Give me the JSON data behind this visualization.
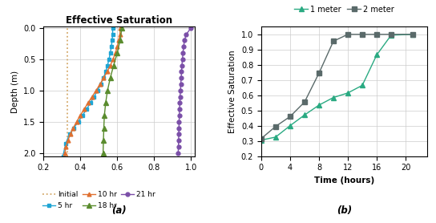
{
  "panel_a": {
    "title": "Effective Saturation",
    "ylabel": "Depth (m)",
    "xlim": [
      0.2,
      1.02
    ],
    "ylim": [
      2.05,
      -0.02
    ],
    "xticks": [
      0.2,
      0.4,
      0.6,
      0.8,
      1.0
    ],
    "yticks": [
      0,
      0.5,
      1.0,
      1.5,
      2.0
    ],
    "label": "(a)",
    "initial_x": 0.33,
    "initial_color": "#D4A96A",
    "series": [
      {
        "label": "5 hr",
        "color": "#1FA5D4",
        "marker": "s",
        "x": [
          0.575,
          0.575,
          0.572,
          0.568,
          0.562,
          0.555,
          0.547,
          0.537,
          0.525,
          0.51,
          0.493,
          0.474,
          0.454,
          0.433,
          0.411,
          0.388,
          0.364,
          0.34,
          0.32,
          0.305
        ],
        "y": [
          0.0,
          0.1,
          0.2,
          0.3,
          0.4,
          0.5,
          0.6,
          0.7,
          0.8,
          0.9,
          1.0,
          1.1,
          1.2,
          1.3,
          1.4,
          1.5,
          1.6,
          1.7,
          1.85,
          2.05
        ]
      },
      {
        "label": "10 hr",
        "color": "#E07030",
        "marker": "^",
        "x": [
          0.618,
          0.614,
          0.608,
          0.6,
          0.59,
          0.577,
          0.562,
          0.545,
          0.526,
          0.506,
          0.485,
          0.463,
          0.441,
          0.42,
          0.399,
          0.379,
          0.361,
          0.345,
          0.332,
          0.322,
          0.315
        ],
        "y": [
          0.0,
          0.1,
          0.2,
          0.3,
          0.4,
          0.5,
          0.6,
          0.7,
          0.8,
          0.9,
          1.0,
          1.1,
          1.2,
          1.3,
          1.4,
          1.5,
          1.6,
          1.7,
          1.8,
          1.9,
          2.0
        ]
      },
      {
        "label": "18 hr",
        "color": "#5A8C2E",
        "marker": "^",
        "x": [
          0.625,
          0.615,
          0.6,
          0.58,
          0.562,
          0.547,
          0.537,
          0.53,
          0.527,
          0.525,
          0.523
        ],
        "y": [
          0.0,
          0.2,
          0.4,
          0.6,
          0.8,
          1.0,
          1.2,
          1.4,
          1.6,
          1.8,
          2.0
        ]
      },
      {
        "label": "21 hr",
        "color": "#7B4FA8",
        "marker": "o",
        "x": [
          1.0,
          0.975,
          0.965,
          0.96,
          0.957,
          0.954,
          0.951,
          0.949,
          0.947,
          0.945,
          0.943,
          0.941,
          0.94,
          0.938,
          0.937,
          0.936,
          0.935,
          0.934,
          0.933,
          0.932,
          0.931
        ],
        "y": [
          0.0,
          0.1,
          0.2,
          0.3,
          0.4,
          0.5,
          0.6,
          0.7,
          0.8,
          0.9,
          1.0,
          1.1,
          1.2,
          1.3,
          1.4,
          1.5,
          1.6,
          1.7,
          1.8,
          1.9,
          2.0
        ]
      }
    ]
  },
  "panel_b": {
    "xlabel": "Time (hours)",
    "ylabel": "Effective Saturation",
    "xlim": [
      0,
      23
    ],
    "ylim": [
      0.2,
      1.05
    ],
    "xticks": [
      0,
      4,
      8,
      12,
      16,
      20
    ],
    "yticks": [
      0.2,
      0.3,
      0.4,
      0.5,
      0.6,
      0.7,
      0.8,
      0.9,
      1.0
    ],
    "label": "(b)",
    "series": [
      {
        "label": "1 meter",
        "color": "#2AAA82",
        "marker": "^",
        "x": [
          0,
          2,
          4,
          6,
          8,
          10,
          12,
          14,
          16,
          18,
          21
        ],
        "y": [
          0.305,
          0.325,
          0.4,
          0.47,
          0.535,
          0.585,
          0.615,
          0.665,
          0.865,
          0.995,
          1.0
        ]
      },
      {
        "label": "2 meter",
        "color": "#5A6A6A",
        "marker": "s",
        "x": [
          0,
          2,
          4,
          6,
          8,
          10,
          12,
          14,
          16,
          18,
          21
        ],
        "y": [
          0.315,
          0.395,
          0.46,
          0.555,
          0.745,
          0.955,
          1.0,
          1.0,
          1.0,
          1.0,
          1.0
        ]
      }
    ]
  }
}
